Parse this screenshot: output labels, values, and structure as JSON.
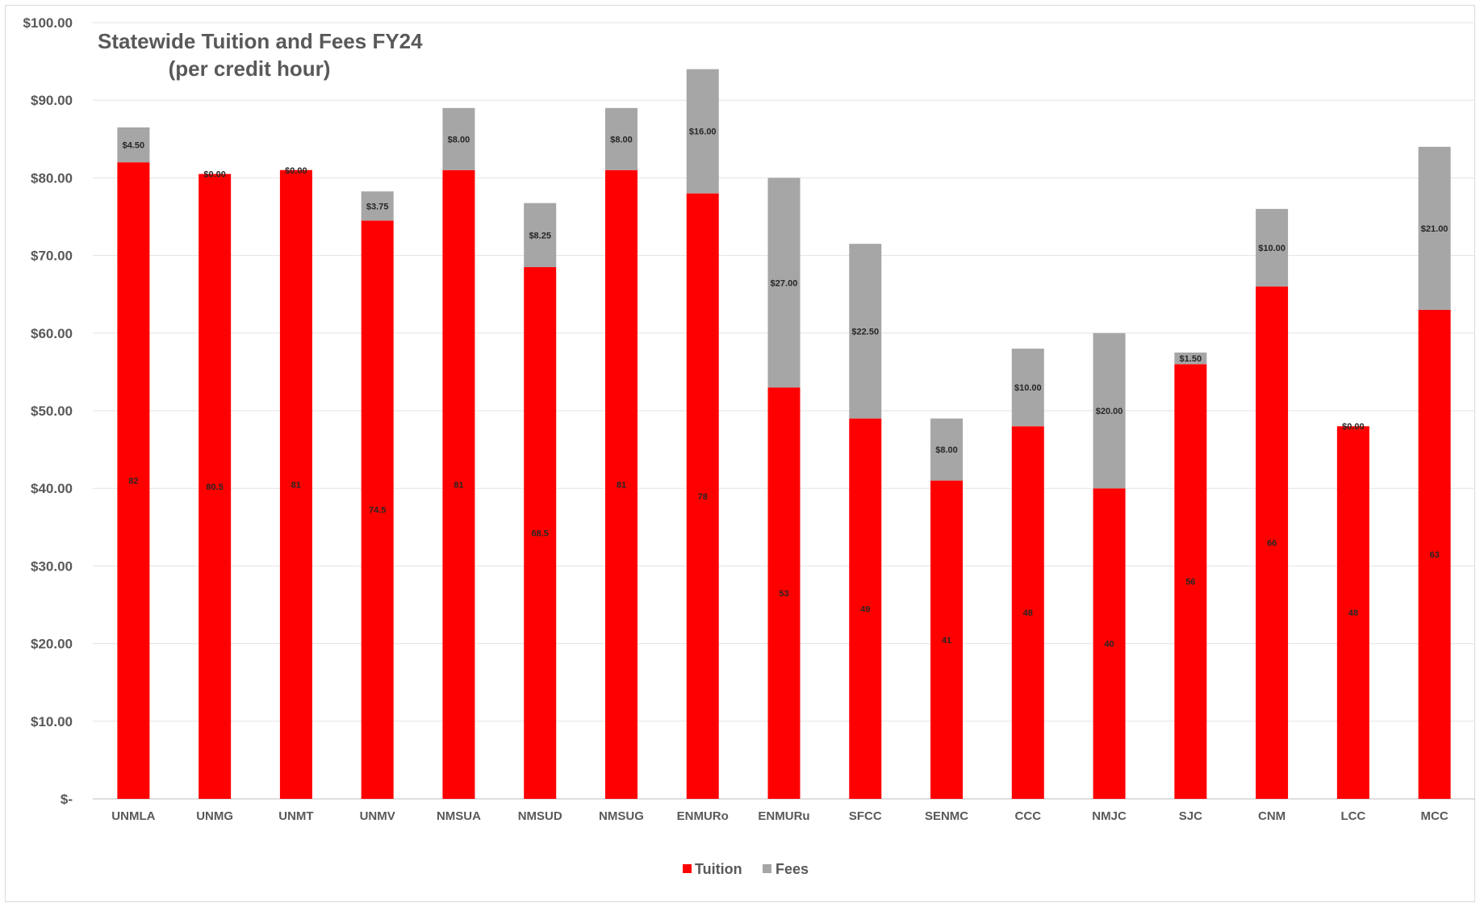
{
  "chart_data": {
    "type": "bar",
    "stacked": true,
    "title": "Statewide Tuition and Fees FY24",
    "subtitle": "(per credit hour)",
    "xlabel": "",
    "ylabel": "",
    "ylim": [
      0,
      100
    ],
    "y_ticks": [
      "$-",
      "$10.00",
      "$20.00",
      "$30.00",
      "$40.00",
      "$50.00",
      "$60.00",
      "$70.00",
      "$80.00",
      "$90.00",
      "$100.00"
    ],
    "grid": true,
    "legend_position": "bottom",
    "categories": [
      "UNMLA",
      "UNMG",
      "UNMT",
      "UNMV",
      "NMSUA",
      "NMSUD",
      "NMSUG",
      "ENMURo",
      "ENMURu",
      "SFCC",
      "SENMC",
      "CCC",
      "NMJC",
      "SJC",
      "CNM",
      "LCC",
      "MCC"
    ],
    "series": [
      {
        "name": "Tuition",
        "color": "#ff0000",
        "values": [
          82,
          80.5,
          81,
          74.5,
          81,
          68.5,
          81,
          78,
          53,
          49,
          41,
          48,
          40,
          56,
          66,
          48,
          63
        ],
        "labels": [
          "82",
          "80.5",
          "81",
          "74.5",
          "81",
          "68.5",
          "81",
          "78",
          "53",
          "49",
          "41",
          "48",
          "40",
          "56",
          "66",
          "48",
          "63"
        ]
      },
      {
        "name": "Fees",
        "color": "#a6a6a6",
        "values": [
          4.5,
          0,
          0,
          3.75,
          8,
          8.25,
          8,
          16,
          27,
          22.5,
          8,
          10,
          20,
          1.5,
          10,
          0,
          21
        ],
        "labels": [
          "$4.50",
          "$0.00",
          "$0.00",
          "$3.75",
          "$8.00",
          "$8.25",
          "$8.00",
          "$16.00",
          "$27.00",
          "$22.50",
          "$8.00",
          "$10.00",
          "$20.00",
          "$1.50",
          "$10.00",
          "$0.00",
          "$21.00"
        ]
      }
    ]
  }
}
